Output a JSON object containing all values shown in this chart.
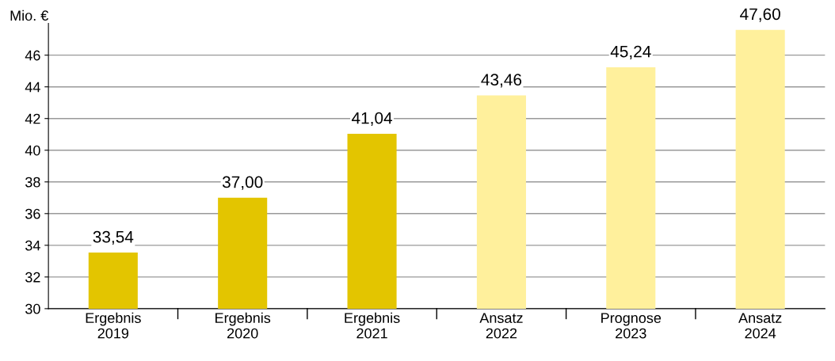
{
  "chart_data": {
    "type": "bar",
    "ylabel": "Mio. €",
    "categories": [
      "Ergebnis\n2019",
      "Ergebnis\n2020",
      "Ergebnis\n2021",
      "Ansatz\n2022",
      "Prognose\n2023",
      "Ansatz\n2024"
    ],
    "values": [
      33.54,
      37.0,
      41.04,
      43.46,
      45.24,
      47.6
    ],
    "colors": [
      "#e3c500",
      "#e3c500",
      "#e3c500",
      "#fff09c",
      "#fff09c",
      "#fff09c"
    ],
    "value_labels": [
      "33,54",
      "37,00",
      "41,04",
      "43,46",
      "45,24",
      "47,60"
    ],
    "ylim": [
      30,
      48
    ],
    "yticks": [
      30,
      32,
      34,
      36,
      38,
      40,
      42,
      44,
      46
    ],
    "grid": "y",
    "legend": false
  }
}
